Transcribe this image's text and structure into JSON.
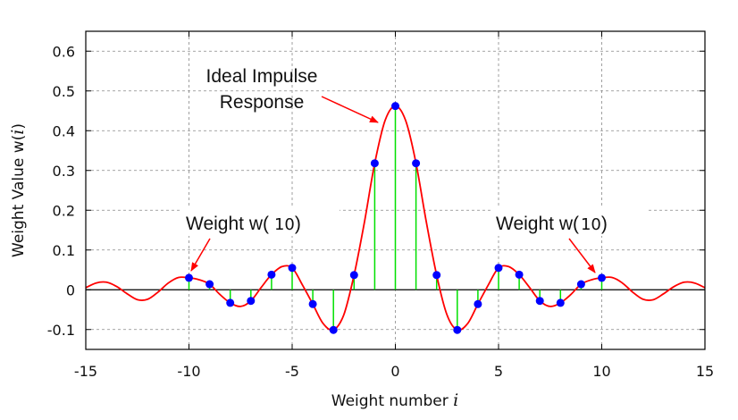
{
  "chart_data": {
    "type": "line",
    "xlabel": "Weight number",
    "xlabel_var": "i",
    "ylabel": "Weight Value w(",
    "ylabel_var": "i",
    "ylabel_close": ")",
    "xlim": [
      -15,
      15
    ],
    "ylim": [
      -0.15,
      0.65
    ],
    "xticks": [
      -15,
      -10,
      -5,
      0,
      5,
      10,
      15
    ],
    "xtick_labels": [
      "-15",
      "-10",
      "-5",
      "0",
      "5",
      "10",
      "15"
    ],
    "yticks": [
      -0.1,
      0,
      0.1,
      0.2,
      0.3,
      0.4,
      0.5,
      0.6
    ],
    "ytick_labels": [
      "-0.1",
      "0",
      "0.1",
      "0.2",
      "0.3",
      "0.4",
      "0.5",
      "0.6"
    ],
    "grid": true,
    "curve": {
      "name": "Ideal Impulse Response",
      "color": "#ff0000",
      "x": [
        -15,
        -14.5,
        -14,
        -13.5,
        -13,
        -12.5,
        -12,
        -11.5,
        -11,
        -10.5,
        -10,
        -9.5,
        -9,
        -8.5,
        -8,
        -7.5,
        -7,
        -6.5,
        -6,
        -5.5,
        -5,
        -4.5,
        -4,
        -3.5,
        -3,
        -2.5,
        -2,
        -1.5,
        -1,
        -0.5,
        0,
        0.5,
        1,
        1.5,
        2,
        2.5,
        3,
        3.5,
        4,
        4.5,
        5,
        5.5,
        6,
        6.5,
        7,
        7.5,
        8,
        8.5,
        9,
        9.5,
        10,
        10.5,
        11,
        11.5,
        12,
        12.5,
        13,
        13.5,
        14,
        14.5,
        15
      ],
      "y": [
        0.005,
        0.017,
        0.019,
        0.008,
        -0.01,
        -0.025,
        -0.024,
        -0.006,
        0.017,
        0.031,
        0.03,
        0.025,
        0.014,
        -0.012,
        -0.033,
        -0.042,
        -0.028,
        0.006,
        0.038,
        0.058,
        0.055,
        0.012,
        -0.036,
        -0.085,
        -0.101,
        -0.063,
        0.037,
        0.17,
        0.318,
        0.425,
        0.462,
        0.425,
        0.318,
        0.17,
        0.037,
        -0.063,
        -0.101,
        -0.085,
        -0.036,
        0.012,
        0.055,
        0.058,
        0.038,
        0.006,
        -0.028,
        -0.042,
        -0.033,
        -0.012,
        0.014,
        0.025,
        0.03,
        0.031,
        0.017,
        -0.006,
        -0.024,
        -0.025,
        -0.01,
        0.008,
        0.019,
        0.017,
        0.005
      ]
    },
    "weights": {
      "stem_color": "#00e000",
      "point_color": "#0000ff",
      "x": [
        -10,
        -9,
        -8,
        -7,
        -6,
        -5,
        -4,
        -3,
        -2,
        -1,
        0,
        1,
        2,
        3,
        4,
        5,
        6,
        7,
        8,
        9,
        10
      ],
      "y": [
        0.03,
        0.014,
        -0.033,
        -0.028,
        0.038,
        0.055,
        -0.036,
        -0.101,
        0.037,
        0.318,
        0.462,
        0.318,
        0.037,
        -0.101,
        -0.036,
        0.055,
        0.038,
        -0.028,
        -0.033,
        0.014,
        0.03
      ]
    },
    "annotations": [
      {
        "line1": "Ideal Impulse",
        "line2": "Response",
        "arrow_target": [
          0.6,
          0.42
        ]
      },
      {
        "text": "Weight w(",
        "num": "10",
        "close": ")",
        "arrow_target": [
          -10,
          0.03
        ]
      },
      {
        "text": "Weight w(",
        "num": "10",
        "close": ")",
        "arrow_target": [
          10,
          0.03
        ]
      }
    ]
  }
}
